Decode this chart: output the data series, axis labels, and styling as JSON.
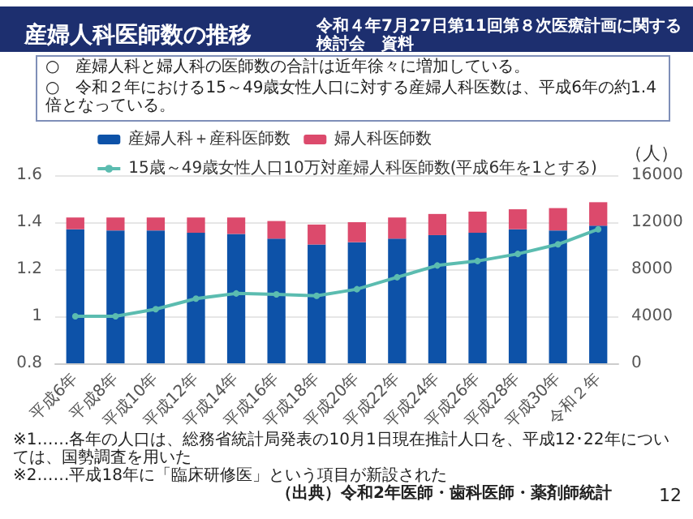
{
  "chart_data": {
    "type": "bar",
    "title": "産婦人科医師数の推移",
    "subtitle": "令和４年7月27日第11回第８次医療計画に関する検討会　資料",
    "categories": [
      "平成6年",
      "平成8年",
      "平成10年",
      "平成12年",
      "平成14年",
      "平成16年",
      "平成18年",
      "平成20年",
      "平成22年",
      "平成24年",
      "平成26年",
      "平成28年",
      "平成30年",
      "令和２年"
    ],
    "stacked": true,
    "series": [
      {
        "name": "産婦人科＋産科医師数",
        "color": "#0d52a8",
        "axis": "y2",
        "values": [
          11400,
          11300,
          11300,
          11100,
          11000,
          10600,
          10100,
          10300,
          10600,
          10900,
          11100,
          11400,
          11300,
          11700
        ]
      },
      {
        "name": "婦人科医師数",
        "color": "#dc4a6c",
        "axis": "y2",
        "values": [
          1000,
          1100,
          1100,
          1300,
          1400,
          1500,
          1700,
          1700,
          1800,
          1800,
          1800,
          1700,
          1900,
          2000
        ]
      },
      {
        "name": "15歳～49歳女性人口10万対産婦人科医師数(平成6年を1とする)",
        "type": "line",
        "color": "#5bbcb0",
        "axis": "y",
        "marker": "circle",
        "values": [
          1.0,
          1.0,
          1.03,
          1.075,
          1.097,
          1.093,
          1.087,
          1.115,
          1.166,
          1.216,
          1.235,
          1.265,
          1.306,
          1.37
        ]
      }
    ],
    "ylim": [
      0.8,
      1.6
    ],
    "yticks": [
      0.8,
      1,
      1.2,
      1.4,
      1.6
    ],
    "y2lim": [
      0,
      16000
    ],
    "y2ticks": [
      0,
      4000,
      8000,
      12000,
      16000
    ],
    "y2label": "（人）",
    "grid": "y",
    "legend": "top",
    "annotations": [
      "○　産婦人科と婦人科の医師数の合計は近年徐々に増加している。",
      "○　令和２年における15～49歳女性人口に対する産婦人科医数は、平成6年の約1.4倍となっている。",
      "※1……各年の人口は、総務省統計局発表の10月1日現在推計人口を、平成12･22年については、国勢調査を用いた",
      "※2……平成18年に「臨床研修医」という項目が新設された",
      "（出典）令和2年医師・歯科医師・薬剤師統計",
      "12"
    ]
  }
}
